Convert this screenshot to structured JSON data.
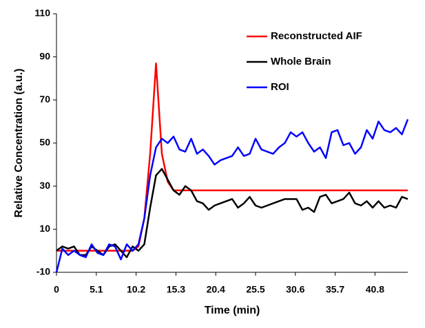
{
  "chart_data": {
    "type": "line",
    "x_label": "Time (min)",
    "y_label": "Relative Concentration (a.u.)",
    "x": [
      0,
      0.75,
      1.5,
      2.25,
      3,
      3.75,
      4.5,
      5.25,
      6,
      6.75,
      7.5,
      8.25,
      9,
      9.75,
      10.5,
      11.25,
      12,
      12.75,
      13.5,
      14.25,
      15,
      15.75,
      16.5,
      17.25,
      18,
      18.75,
      19.5,
      20.25,
      21,
      21.75,
      22.5,
      23.25,
      24,
      24.75,
      25.5,
      26.25,
      27,
      27.75,
      28.5,
      29.25,
      30,
      30.75,
      31.5,
      32.25,
      33,
      33.75,
      34.5,
      35.25,
      36,
      36.75,
      37.5,
      38.25,
      39,
      39.75,
      40.5,
      41.25,
      42,
      42.75,
      43.5,
      44.25,
      45
    ],
    "series": [
      {
        "name": "Reconstructed AIF",
        "color": "#ff0000",
        "values": [
          0,
          0,
          0,
          0,
          0,
          0,
          0,
          0,
          0,
          0,
          0,
          0,
          0,
          0,
          2,
          15,
          45,
          87,
          45,
          32,
          28,
          28,
          28,
          28,
          28,
          28,
          28,
          28,
          28,
          28,
          28,
          28,
          28,
          28,
          28,
          28,
          28,
          28,
          28,
          28,
          28,
          28,
          28,
          28,
          28,
          28,
          28,
          28,
          28,
          28,
          28,
          28,
          28,
          28,
          28,
          28,
          28,
          28,
          28,
          28,
          28
        ]
      },
      {
        "name": "Whole Brain",
        "color": "#000000",
        "values": [
          0,
          2,
          1,
          2,
          -2,
          -2,
          2,
          0,
          -2,
          2,
          3,
          0,
          -3,
          2,
          0,
          3,
          20,
          35,
          38,
          33,
          28,
          26,
          30,
          28,
          23,
          22,
          19,
          21,
          22,
          23,
          24,
          20,
          22,
          25,
          21,
          20,
          21,
          22,
          23,
          24,
          24,
          24,
          19,
          20,
          18,
          25,
          26,
          22,
          23,
          24,
          27,
          22,
          21,
          23,
          20,
          23,
          20,
          21,
          20,
          25,
          24
        ]
      },
      {
        "name": "ROI",
        "color": "#0000ff",
        "values": [
          -10,
          1,
          -2,
          0,
          -2,
          -3,
          3,
          -1,
          -2,
          3,
          2,
          -4,
          3,
          0,
          3,
          15,
          35,
          48,
          52,
          50,
          53,
          47,
          46,
          52,
          45,
          47,
          44,
          40,
          42,
          43,
          44,
          48,
          44,
          45,
          52,
          47,
          46,
          45,
          48,
          50,
          55,
          53,
          55,
          50,
          46,
          48,
          43,
          55,
          56,
          49,
          50,
          45,
          48,
          56,
          52,
          60,
          56,
          55,
          57,
          54,
          61
        ]
      }
    ],
    "xlim": [
      0,
      45
    ],
    "xticks": [
      0,
      5.1,
      10.2,
      15.3,
      20.4,
      25.5,
      30.6,
      35.7,
      40.8
    ],
    "ylim": [
      -10,
      110
    ],
    "yticks": [
      -10,
      10,
      30,
      50,
      70,
      90,
      110
    ],
    "grid": false,
    "legend": "upper right"
  }
}
